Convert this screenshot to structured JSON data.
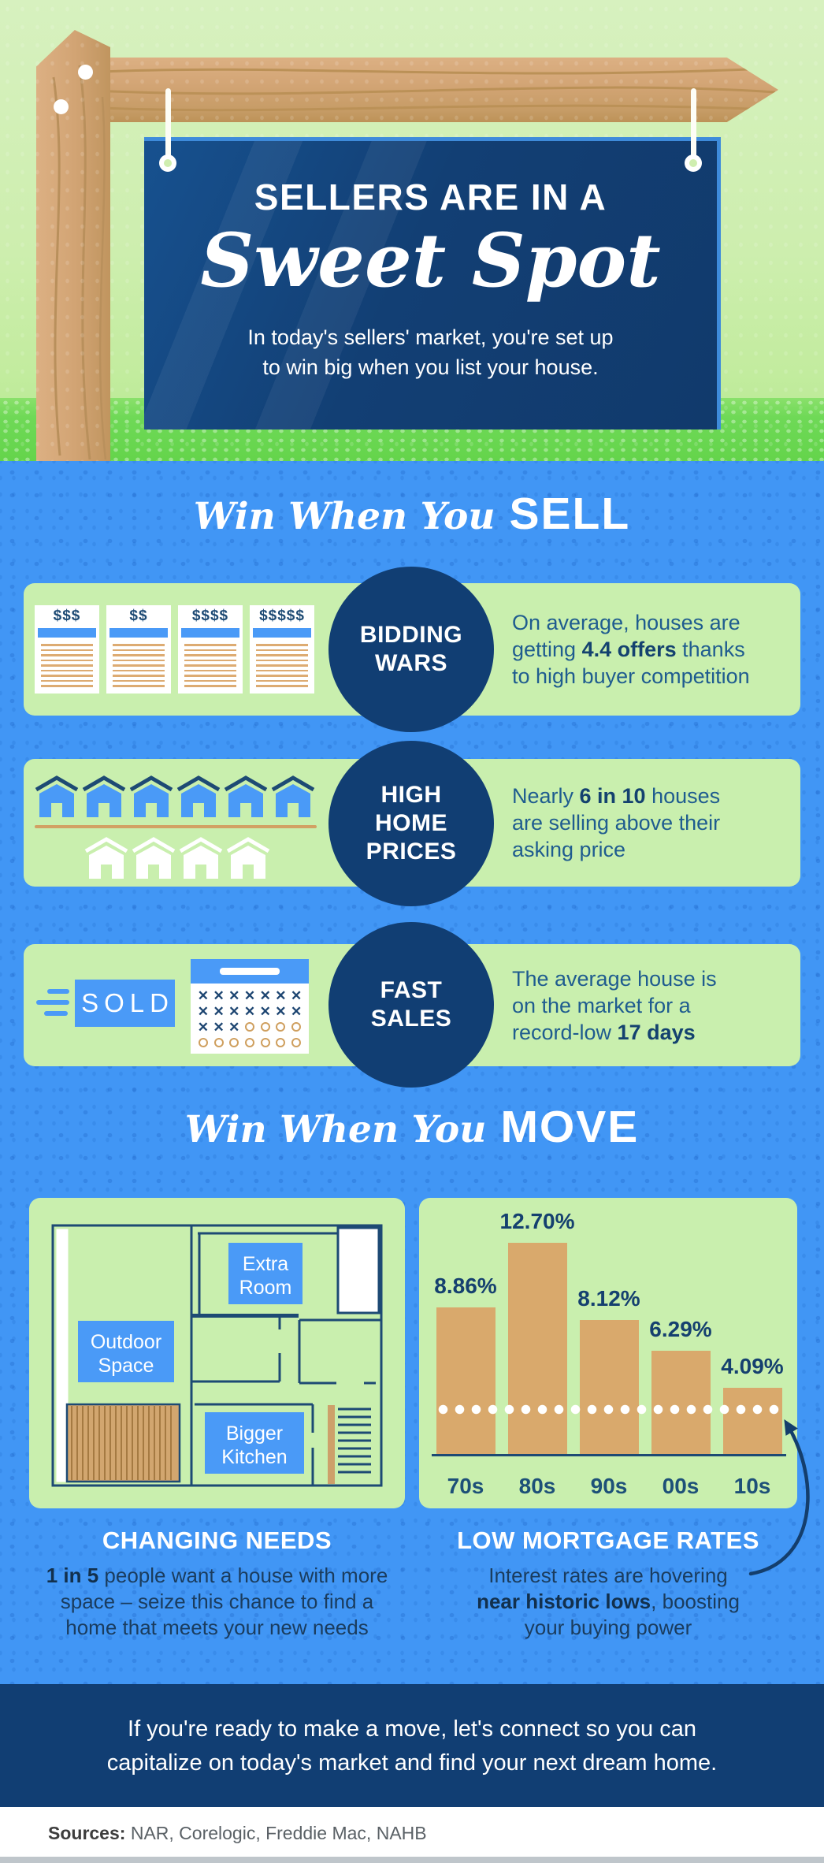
{
  "colors": {
    "background_blue": "#4196f5",
    "navy": "#113e73",
    "card_green": "#c9efae",
    "pale_green_top": "#cdeeae",
    "grass_green": "#6fd957",
    "tan": "#d9a96c",
    "wood": "#d2a474",
    "white": "#ffffff",
    "body_text_navy": "#1f5c8f"
  },
  "icons": {
    "top": [
      "wood-post-icon",
      "wood-beam-icon",
      "nail-icon",
      "hanging-string-icon",
      "string-knot-icon"
    ],
    "rows": [
      "dollar-offer-sheet-icon",
      "blue-house-icon",
      "white-house-icon",
      "sold-sign-icon",
      "calendar-icon"
    ],
    "move": [
      "floor-plan-icon",
      "white-dotted-reference-line",
      "curved-arrow-icon"
    ]
  },
  "header": {
    "title_line1": "SELLERS ARE IN A",
    "title_line2": "Sweet Spot",
    "subtitle_line1": "In today's sellers' market, you're set up",
    "subtitle_line2": "to win big when you list your house."
  },
  "sell_section": {
    "heading_script": "Win When You",
    "heading_bold": "SELL",
    "offers_papers": [
      "$$$",
      "$$",
      "$$$$",
      "$$$$$"
    ],
    "houses_top_count": 6,
    "houses_bottom_count": 4,
    "sold_label": "SOLD",
    "calendar_rows": [
      [
        "x",
        "x",
        "x",
        "x",
        "x",
        "x",
        "x"
      ],
      [
        "x",
        "x",
        "x",
        "x",
        "x",
        "x",
        "x"
      ],
      [
        "x",
        "x",
        "x",
        "o",
        "o",
        "o",
        "o"
      ],
      [
        "o",
        "o",
        "o",
        "o",
        "o",
        "o",
        "o"
      ]
    ],
    "rows": [
      {
        "badge_lines": [
          "BIDDING",
          "WARS"
        ],
        "text_lines": [
          [
            {
              "t": "On average, houses are"
            }
          ],
          [
            {
              "t": "getting "
            },
            {
              "t": "4.4 offers",
              "b": true
            },
            {
              "t": " thanks"
            }
          ],
          [
            {
              "t": "to high buyer competition"
            }
          ]
        ]
      },
      {
        "badge_lines": [
          "HIGH",
          "HOME",
          "PRICES"
        ],
        "text_lines": [
          [
            {
              "t": "Nearly "
            },
            {
              "t": "6 in 10",
              "b": true
            },
            {
              "t": " houses"
            }
          ],
          [
            {
              "t": "are selling above their"
            }
          ],
          [
            {
              "t": "asking price"
            }
          ]
        ]
      },
      {
        "badge_lines": [
          "FAST",
          "SALES"
        ],
        "text_lines": [
          [
            {
              "t": "The average house is"
            }
          ],
          [
            {
              "t": "on the market for a"
            }
          ],
          [
            {
              "t": "record-low "
            },
            {
              "t": "17 days",
              "b": true
            }
          ]
        ]
      }
    ]
  },
  "move_section": {
    "heading_script": "Win When You",
    "heading_bold": "MOVE",
    "floorplan_labels": {
      "extra_room": [
        "Extra",
        "Room"
      ],
      "outdoor_space": [
        "Outdoor",
        "Space"
      ],
      "bigger_kitchen": [
        "Bigger",
        "Kitchen"
      ]
    },
    "left_column": {
      "heading": "CHANGING NEEDS",
      "lines": [
        [
          {
            "t": "1 in 5",
            "b": true
          },
          {
            "t": " people want a house with more"
          }
        ],
        [
          {
            "t": "space – seize this chance to find a"
          }
        ],
        [
          {
            "t": "home that meets your new needs"
          }
        ]
      ]
    },
    "right_column": {
      "heading": "LOW MORTGAGE RATES",
      "lines": [
        [
          {
            "t": "Interest rates are hovering"
          }
        ],
        [
          {
            "t": "near historic lows",
            "b": true
          },
          {
            "t": ", boosting"
          }
        ],
        [
          {
            "t": "your buying power"
          }
        ]
      ]
    }
  },
  "chart_data": {
    "type": "bar",
    "categories": [
      "70s",
      "80s",
      "90s",
      "00s",
      "10s"
    ],
    "values": [
      8.86,
      12.7,
      8.12,
      6.29,
      4.09
    ],
    "value_labels": [
      "8.86%",
      "12.70%",
      "8.12%",
      "6.29%",
      "4.09%"
    ],
    "title": "",
    "xlabel": "",
    "ylabel": "",
    "ylim": [
      0,
      14
    ],
    "grid": false,
    "legend": "none",
    "bar_color": "#d9a96c",
    "reference_line_value": 2.8,
    "reference_line_style": "white dotted"
  },
  "footer_band": {
    "line1": "If you're ready to make a move, let's connect so you can",
    "line2": "capitalize on today's market and find your next dream home."
  },
  "sources": {
    "label": "Sources:",
    "text": " NAR, Corelogic, Freddie Mac, NAHB"
  }
}
